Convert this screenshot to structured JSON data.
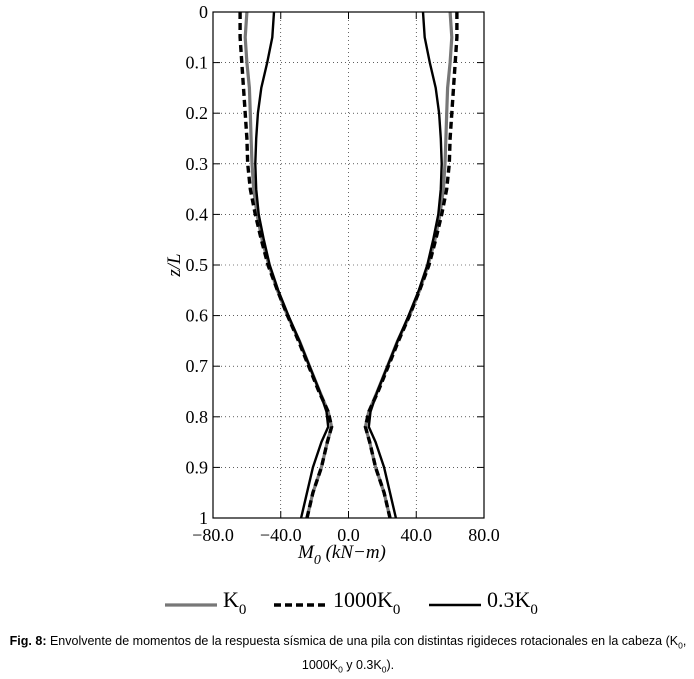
{
  "chart_data": {
    "type": "line",
    "xlabel_main": "M",
    "xlabel_sub": "0",
    "xlabel_rest": " (kN−m)",
    "ylabel": "z/L",
    "xlim": [
      -80,
      80
    ],
    "ylim": [
      0,
      1
    ],
    "y_inverted": true,
    "grid": true,
    "x_ticks": [
      -80,
      -40,
      0,
      40,
      80
    ],
    "x_tick_labels": [
      "−80.0",
      "−40.0",
      "0.0",
      "40.0",
      "80.0"
    ],
    "y_ticks": [
      0,
      0.1,
      0.2,
      0.3,
      0.4,
      0.5,
      0.6,
      0.7,
      0.8,
      0.9,
      1
    ],
    "y_tick_labels": [
      "0",
      "0.1",
      "0.2",
      "0.3",
      "0.4",
      "0.5",
      "0.6",
      "0.7",
      "0.8",
      "0.9",
      "1"
    ],
    "z": [
      0,
      0.05,
      0.1,
      0.15,
      0.2,
      0.25,
      0.3,
      0.35,
      0.4,
      0.45,
      0.5,
      0.55,
      0.6,
      0.65,
      0.7,
      0.75,
      0.79,
      0.82,
      0.85,
      0.9,
      0.95,
      1.0
    ],
    "series": [
      {
        "name_main": "K",
        "name_sub": "0",
        "color": "#777777",
        "style": "solid",
        "values": [
          60,
          61,
          60,
          58.5,
          58,
          57.5,
          57,
          56,
          54,
          51,
          47,
          42,
          36,
          29,
          23,
          17,
          12,
          10,
          12.5,
          16,
          21,
          24.5
        ]
      },
      {
        "name_main": "1000K",
        "name_sub": "0",
        "color": "#000000",
        "style": "dashed",
        "values": [
          64,
          64,
          63,
          62,
          61,
          60,
          59.5,
          58,
          55,
          51.5,
          47.5,
          42,
          36,
          29.5,
          23.5,
          17.5,
          12,
          10,
          12.5,
          16,
          21,
          24.5
        ]
      },
      {
        "name_main": "0.3K",
        "name_sub": "0",
        "color": "#000000",
        "style": "solid",
        "values": [
          44,
          45,
          48,
          51.5,
          53.5,
          54.5,
          55,
          54.5,
          53,
          50,
          46.5,
          41.5,
          35.5,
          29,
          23,
          17,
          13,
          12,
          16,
          21,
          24.5,
          28
        ]
      }
    ]
  },
  "caption": {
    "label": "Fig. 8:",
    "text_1": " Envolvente de momentos de la respuesta sísmica de una pila con distintas rigideces rotacionales en la cabeza (K",
    "sub_1": "0",
    "text_2": ", 1000K",
    "sub_2": "0",
    "text_3": " y 0.3K",
    "sub_3": "0",
    "text_4": ")."
  }
}
